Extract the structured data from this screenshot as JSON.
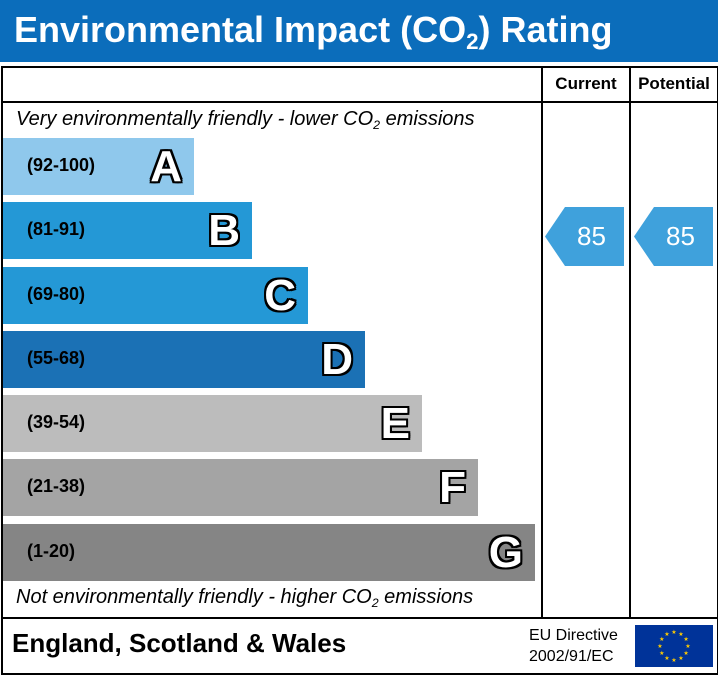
{
  "title_prefix": "Environmental Impact (CO",
  "title_sub": "2",
  "title_suffix": ") Rating",
  "columns": {
    "current": "Current",
    "potential": "Potential"
  },
  "top_note": {
    "prefix": "Very environmentally friendly - lower CO",
    "sub": "2",
    "suffix": " emissions"
  },
  "bottom_note": {
    "prefix": "Not environmentally friendly - higher CO",
    "sub": "2",
    "suffix": " emissions"
  },
  "footer": {
    "country": "England, Scotland & Wales",
    "directive_line1": "EU Directive",
    "directive_line2": "2002/91/EC"
  },
  "chart_data": {
    "type": "bar",
    "categories": [
      "A",
      "B",
      "C",
      "D",
      "E",
      "F",
      "G"
    ],
    "ranges": [
      "(92-100)",
      "(81-91)",
      "(69-80)",
      "(55-68)",
      "(39-54)",
      "(21-38)",
      "(1-20)"
    ],
    "colors": [
      "#8fc8ec",
      "#2498d6",
      "#2498d6",
      "#1b71b5",
      "#bcbcbc",
      "#a4a4a4",
      "#858585"
    ],
    "current": 85,
    "potential": 85,
    "current_band": "B",
    "potential_band": "B",
    "rating_color": "#3fa1dc",
    "flag_color": "#003399",
    "star_color": "#ffcc00"
  }
}
